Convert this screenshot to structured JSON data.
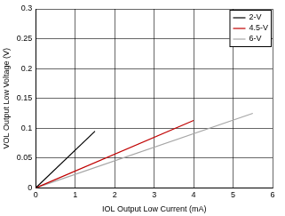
{
  "chart_data": {
    "type": "line",
    "x_label": "IOL Output Low Current (mA)",
    "y_label": "VOL Output Low Voltage (V)",
    "series": [
      {
        "name": "2-V",
        "color": "#000000",
        "x": [
          0,
          1.5
        ],
        "values": [
          0,
          0.095
        ]
      },
      {
        "name": "4.5-V",
        "color": "#c00000",
        "x": [
          0,
          4
        ],
        "values": [
          0,
          0.113
        ]
      },
      {
        "name": "6-V",
        "color": "#a6a6a6",
        "x": [
          0,
          5.5
        ],
        "values": [
          0,
          0.125
        ]
      }
    ],
    "xlim": [
      0,
      6
    ],
    "xticks": [
      0,
      1,
      2,
      3,
      4,
      5,
      6
    ],
    "ylim": [
      0,
      0.3
    ],
    "yticks": [
      0,
      0.05,
      0.1,
      0.15,
      0.2,
      0.25,
      0.3
    ],
    "grid": true,
    "legend": "upper right"
  }
}
